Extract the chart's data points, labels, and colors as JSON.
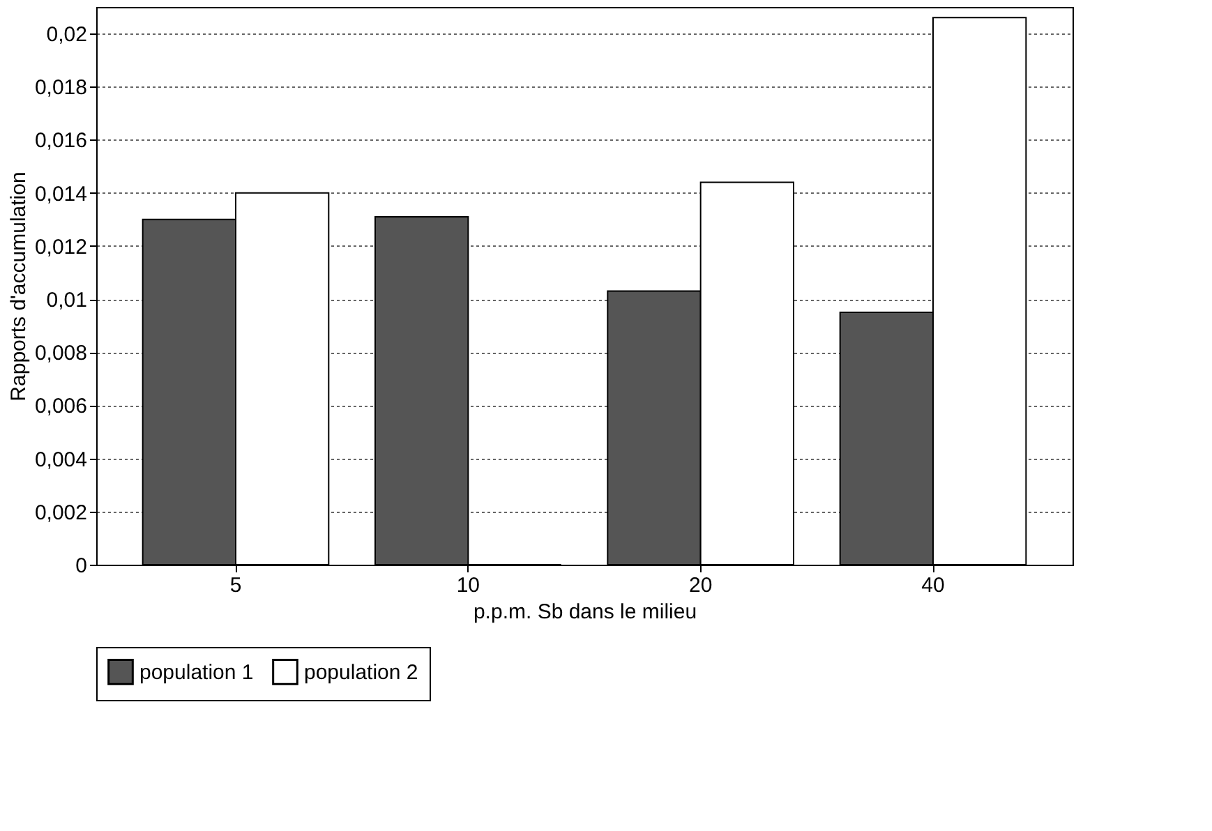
{
  "chart_data": {
    "type": "bar",
    "xlabel": "p.p.m. Sb dans le milieu",
    "ylabel": "Rapports d'accumulation",
    "categories": [
      "5",
      "10",
      "20",
      "40"
    ],
    "series": [
      {
        "name": "population 1",
        "color": "#555555",
        "values": [
          0.013,
          0.0131,
          0.0103,
          0.0095
        ]
      },
      {
        "name": "population 2",
        "color": "#ffffff",
        "values": [
          0.014,
          0,
          0.0144,
          0.0206
        ]
      }
    ],
    "ylim": [
      0,
      0.021
    ],
    "yticks": [
      {
        "value": 0,
        "label": "0"
      },
      {
        "value": 0.002,
        "label": "0,002"
      },
      {
        "value": 0.004,
        "label": "0,004"
      },
      {
        "value": 0.006,
        "label": "0,006"
      },
      {
        "value": 0.008,
        "label": "0,008"
      },
      {
        "value": 0.01,
        "label": "0,01"
      },
      {
        "value": 0.012,
        "label": "0,012"
      },
      {
        "value": 0.014,
        "label": "0,014"
      },
      {
        "value": 0.016,
        "label": "0,016"
      },
      {
        "value": 0.018,
        "label": "0,018"
      },
      {
        "value": 0.02,
        "label": "0,02"
      }
    ],
    "grid": "y",
    "legend": "bottom"
  }
}
